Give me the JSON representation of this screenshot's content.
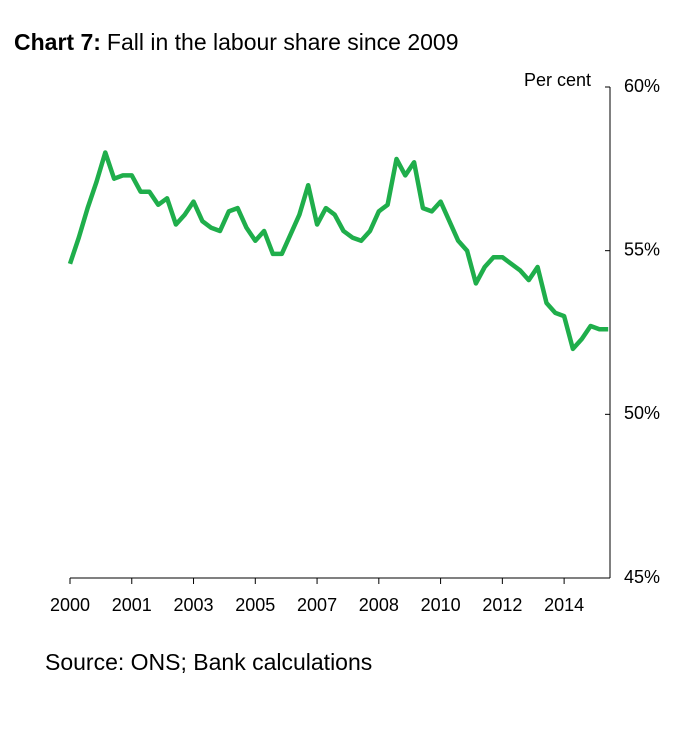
{
  "chart_data": {
    "type": "line",
    "title_label": "Chart 7:",
    "title": "Fall in the labour share since 2009",
    "y_axis_label": "Per cent",
    "source": "Source: ONS; Bank calculations",
    "color": "#1fae4b",
    "grid": false,
    "x": [
      2000,
      2000.25,
      2000.5,
      2000.75,
      2001,
      2001.25,
      2001.5,
      2001.75,
      2002,
      2002.25,
      2002.5,
      2002.75,
      2003,
      2003.25,
      2003.5,
      2003.75,
      2004,
      2004.25,
      2004.5,
      2004.75,
      2005,
      2005.25,
      2005.5,
      2005.75,
      2006,
      2006.25,
      2006.5,
      2006.75,
      2007,
      2007.25,
      2007.5,
      2007.75,
      2008,
      2008.25,
      2008.5,
      2008.75,
      2009,
      2009.25,
      2009.5,
      2009.75,
      2010,
      2010.25,
      2010.5,
      2010.75,
      2011,
      2011.25,
      2011.5,
      2011.75,
      2012,
      2012.25,
      2012.5,
      2012.75,
      2013,
      2013.25,
      2013.5,
      2013.75,
      2014,
      2014.25,
      2014.5,
      2014.75,
      2015,
      2015.25
    ],
    "values": [
      54.6,
      55.4,
      56.3,
      57.1,
      58.0,
      57.2,
      57.3,
      57.3,
      56.8,
      56.8,
      56.4,
      56.6,
      55.8,
      56.1,
      56.5,
      55.9,
      55.7,
      55.6,
      56.2,
      56.3,
      55.7,
      55.3,
      55.6,
      54.9,
      54.9,
      55.5,
      56.1,
      57.0,
      55.8,
      56.3,
      56.1,
      55.6,
      55.4,
      55.3,
      55.6,
      56.2,
      56.4,
      57.8,
      57.3,
      57.7,
      56.3,
      56.2,
      56.5,
      55.9,
      55.3,
      55.0,
      54.0,
      54.5,
      54.8,
      54.8,
      54.6,
      54.4,
      54.1,
      54.5,
      53.4,
      53.1,
      53.0,
      52.0,
      52.3,
      52.7,
      52.6,
      52.6
    ],
    "xlim": [
      2000,
      2015.3
    ],
    "xticks": [
      2000,
      {
        "value": 2001.75,
        "label": "2001"
      },
      {
        "value": 2003.5,
        "label": "2003"
      },
      {
        "value": 2005.25,
        "label": "2005"
      },
      2007,
      {
        "value": 2008.75,
        "label": "2008"
      },
      {
        "value": 2010.5,
        "label": "2010"
      },
      {
        "value": 2012.25,
        "label": "2012"
      },
      2014
    ],
    "ylim": [
      45,
      60
    ],
    "yticks": [
      {
        "value": 45,
        "label": "45%"
      },
      {
        "value": 50,
        "label": "50%"
      },
      {
        "value": 55,
        "label": "55%"
      },
      {
        "value": 60,
        "label": "60%"
      }
    ]
  }
}
